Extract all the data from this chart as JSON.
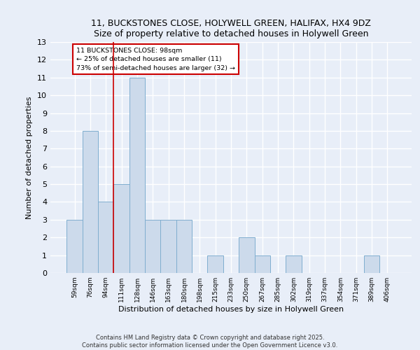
{
  "title1": "11, BUCKSTONES CLOSE, HOLYWELL GREEN, HALIFAX, HX4 9DZ",
  "title2": "Size of property relative to detached houses in Holywell Green",
  "xlabel": "Distribution of detached houses by size in Holywell Green",
  "ylabel": "Number of detached properties",
  "categories": [
    "59sqm",
    "76sqm",
    "94sqm",
    "111sqm",
    "128sqm",
    "146sqm",
    "163sqm",
    "180sqm",
    "198sqm",
    "215sqm",
    "233sqm",
    "250sqm",
    "267sqm",
    "285sqm",
    "302sqm",
    "319sqm",
    "337sqm",
    "354sqm",
    "371sqm",
    "389sqm",
    "406sqm"
  ],
  "values": [
    3,
    8,
    4,
    5,
    11,
    3,
    3,
    3,
    0,
    1,
    0,
    2,
    1,
    0,
    1,
    0,
    0,
    0,
    0,
    1,
    0
  ],
  "bar_color": "#ccdaeb",
  "bar_edge_color": "#7faecf",
  "red_line_x": 2.5,
  "ylim": [
    0,
    13
  ],
  "yticks": [
    0,
    1,
    2,
    3,
    4,
    5,
    6,
    7,
    8,
    9,
    10,
    11,
    12,
    13
  ],
  "annotation_text": "11 BUCKSTONES CLOSE: 98sqm\n← 25% of detached houses are smaller (11)\n73% of semi-detached houses are larger (32) →",
  "annotation_box_color": "#ffffff",
  "annotation_box_edge": "#cc0000",
  "footer1": "Contains HM Land Registry data © Crown copyright and database right 2025.",
  "footer2": "Contains public sector information licensed under the Open Government Licence v3.0.",
  "bg_color": "#e8eef8",
  "plot_bg_color": "#e8eef8",
  "grid_color": "#ffffff"
}
